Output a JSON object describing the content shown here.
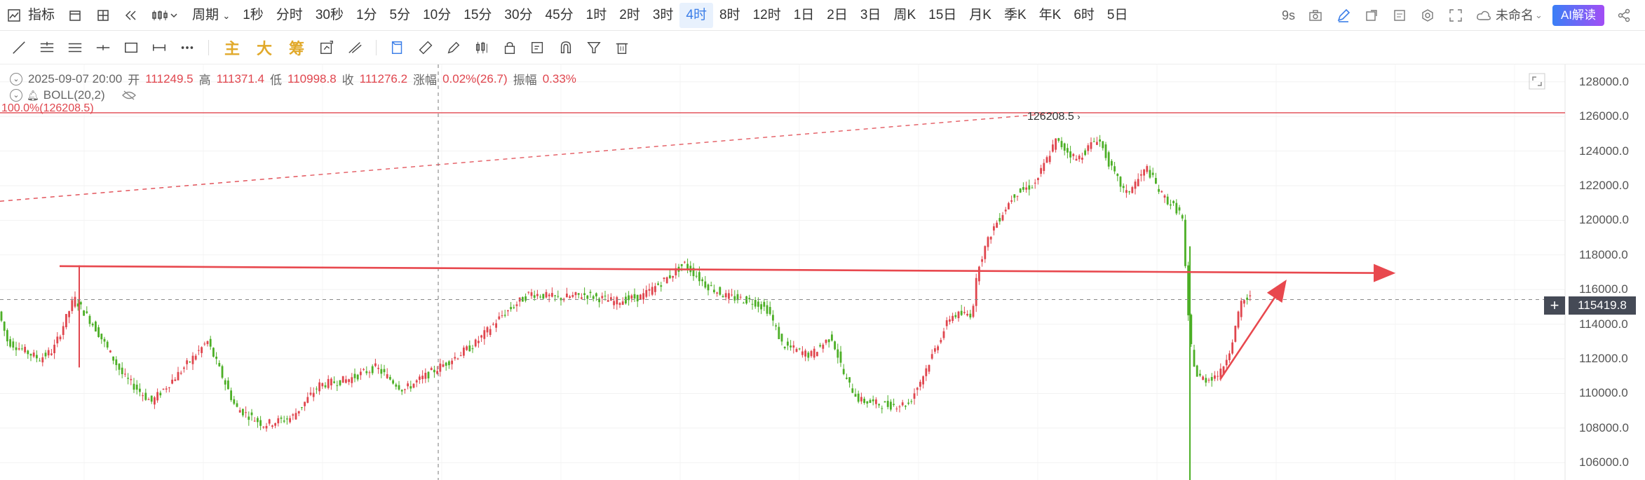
{
  "toolbar": {
    "indicator_label": "指标",
    "period_label": "周期",
    "intervals": [
      "1秒",
      "分时",
      "30秒",
      "1分",
      "5分",
      "10分",
      "15分",
      "30分",
      "45分",
      "1时",
      "2时",
      "3时",
      "4时",
      "8时",
      "12时",
      "1日",
      "2日",
      "3日",
      "周K",
      "15日",
      "月K",
      "季K",
      "年K",
      "6时",
      "5日"
    ],
    "active_interval": "4时",
    "refresh_label": "9s",
    "cloud_label": "未命名",
    "ai_label": "AI解读"
  },
  "draw_toolbar": {
    "main_label": "主",
    "big_label": "大",
    "chip_label": "筹"
  },
  "info": {
    "datetime": "2025-09-07 20:00",
    "open_label": "开",
    "open": "111249.5",
    "high_label": "高",
    "high": "111371.4",
    "low_label": "低",
    "low": "110998.8",
    "close_label": "收",
    "close": "111276.2",
    "change_label": "涨幅",
    "change": "0.02%(26.7)",
    "amp_label": "振幅",
    "amp": "0.33%"
  },
  "indicator": {
    "name": "BOLL(20,2)"
  },
  "annotations": {
    "fib_label": "100.0%(126208.5)",
    "peak_label": "126208.5",
    "current_price": "115419.8"
  },
  "colors": {
    "up": "#e0464e",
    "down": "#4caf26",
    "accent": "#3b7ee8"
  },
  "price_axis": {
    "min": 105000,
    "max": 129000,
    "ticks": [
      "128000.0",
      "126000.0",
      "124000.0",
      "122000.0",
      "120000.0",
      "118000.0",
      "116000.0",
      "114000.0",
      "112000.0",
      "110000.0",
      "108000.0",
      "106000.0"
    ]
  }
}
